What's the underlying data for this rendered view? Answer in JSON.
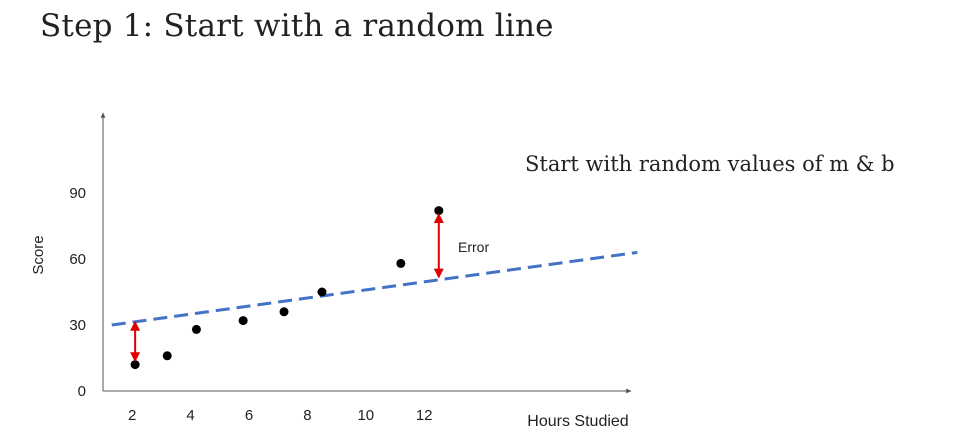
{
  "slide": {
    "title": "Step 1: Start with a random line",
    "annotation": "Start with random values of m & b"
  },
  "chart_data": {
    "type": "scatter",
    "xlabel": "Hours Studied",
    "ylabel": "Score",
    "xlim": [
      1,
      18
    ],
    "ylim": [
      0,
      135
    ],
    "x_ticks": [
      "2",
      "4",
      "6",
      "8",
      "10",
      "12"
    ],
    "y_ticks": [
      "0",
      "30",
      "60",
      "90"
    ],
    "grid": false,
    "points": [
      {
        "x": 2.1,
        "y": 12
      },
      {
        "x": 3.2,
        "y": 16
      },
      {
        "x": 4.2,
        "y": 28
      },
      {
        "x": 5.8,
        "y": 32
      },
      {
        "x": 7.2,
        "y": 36
      },
      {
        "x": 8.5,
        "y": 45
      },
      {
        "x": 11.2,
        "y": 58
      },
      {
        "x": 12.5,
        "y": 82
      }
    ],
    "line": {
      "x1": 1.3,
      "y1": 30,
      "x2": 19.3,
      "y2": 63,
      "style": "dashed",
      "color": "#4472c4"
    },
    "error_markers": [
      {
        "x": 12.5,
        "from": 80,
        "to": 52
      },
      {
        "x": 2.1,
        "from": 14,
        "to": 31
      }
    ],
    "error_label": "Error",
    "colors": {
      "points": "#000000",
      "line": "#4472c4",
      "error": "#e00000",
      "axis": "#555555"
    }
  }
}
